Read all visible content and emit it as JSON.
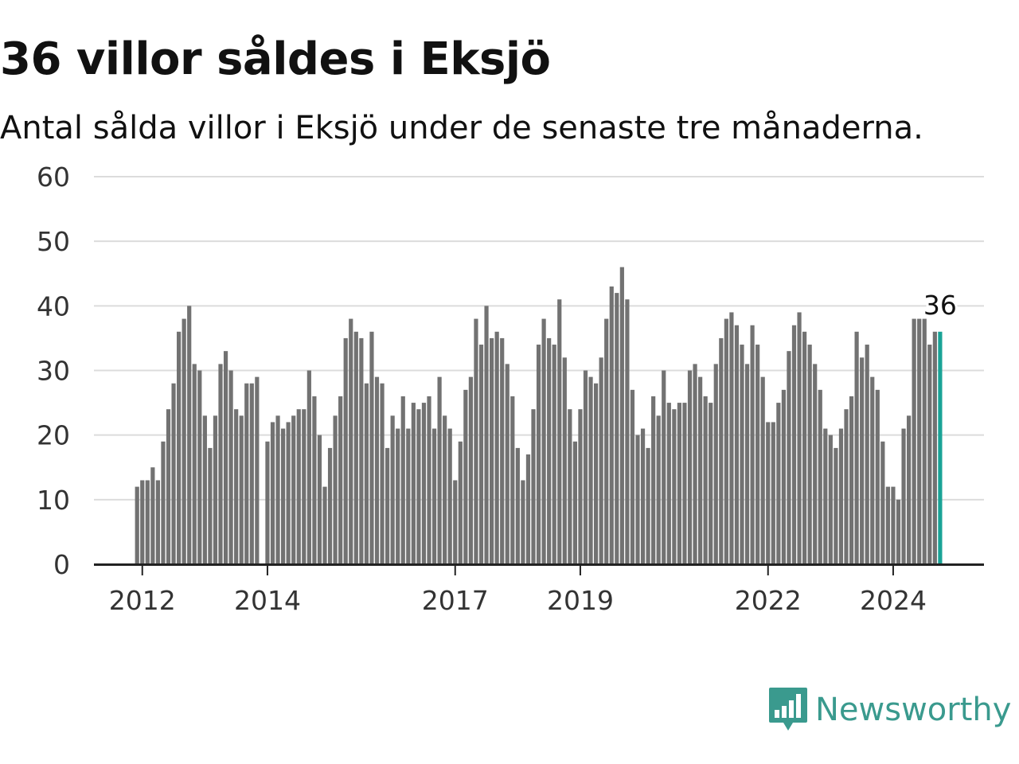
{
  "title": "36 villor såldes i Eksjö",
  "subtitle": "Antal sålda villor i Eksjö under de senaste tre månaderna.",
  "brand": {
    "name": "Newsworthy",
    "icon": "bar-chart-icon",
    "color": "#3a9a8e"
  },
  "chart_data": {
    "type": "bar",
    "title": "36 villor såldes i Eksjö",
    "subtitle": "Antal sålda villor i Eksjö under de senaste tre månaderna.",
    "xlabel": "",
    "ylabel": "",
    "ylim": [
      0,
      60
    ],
    "yticks": [
      0,
      10,
      20,
      30,
      40,
      50,
      60
    ],
    "xticks": [
      "2012",
      "2014",
      "2017",
      "2019",
      "2022",
      "2024"
    ],
    "grid": true,
    "bar_color": "#727272",
    "highlight_color": "#1aa396",
    "highlight_label": "36",
    "series": [
      {
        "values": [
          12,
          13,
          13,
          15,
          13,
          19,
          24,
          28,
          36,
          38,
          40,
          31,
          30,
          23,
          18,
          23,
          31,
          33,
          30,
          24,
          23,
          28,
          28,
          29,
          0,
          19,
          22,
          23,
          21,
          22,
          23,
          24,
          24,
          30,
          26,
          20,
          12,
          18,
          23,
          26,
          35,
          38,
          36,
          35,
          28,
          36,
          29,
          28,
          18,
          23,
          21,
          26,
          21,
          25,
          24,
          25,
          26,
          21,
          29,
          23,
          21,
          13,
          19,
          27,
          29,
          38,
          34,
          40,
          35,
          36,
          35,
          31,
          26,
          18,
          13,
          17,
          24,
          34,
          38,
          35,
          34,
          41,
          32,
          24,
          19,
          24,
          30,
          29,
          28,
          32,
          38,
          43,
          42,
          46,
          41,
          27,
          20,
          21,
          18,
          26,
          23,
          30,
          25,
          24,
          25,
          25,
          30,
          31,
          29,
          26,
          25,
          31,
          35,
          38,
          39,
          37,
          34,
          31,
          37,
          34,
          29,
          22,
          22,
          25,
          27,
          33,
          37,
          39,
          36,
          34,
          31,
          27,
          21,
          20,
          18,
          21,
          24,
          26,
          36,
          32,
          34,
          29,
          27,
          19,
          12,
          12,
          10,
          21,
          23,
          38,
          38,
          38,
          34,
          36,
          36
        ]
      }
    ]
  }
}
